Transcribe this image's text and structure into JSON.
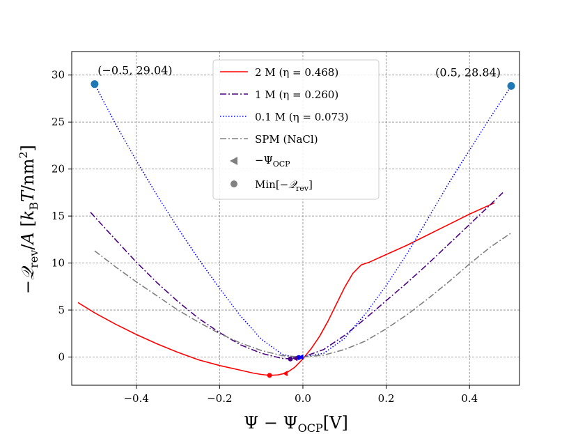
{
  "chart_data": {
    "type": "line",
    "xlabel": "Ψ − Ψ_OCP[V]",
    "ylabel": "−Q_rev/A [k_B T/nm²]",
    "xlim": [
      -0.555,
      0.52
    ],
    "ylim": [
      -3.0,
      32.5
    ],
    "xticks": [
      -0.4,
      -0.2,
      0.0,
      0.2,
      0.4
    ],
    "xtick_labels": [
      "−0.4",
      "−0.2",
      "0.0",
      "0.2",
      "0.4"
    ],
    "yticks": [
      0,
      5,
      10,
      15,
      20,
      25,
      30
    ],
    "ytick_labels": [
      "0",
      "5",
      "10",
      "15",
      "20",
      "25",
      "30"
    ],
    "grid": true,
    "legend_position": "top-center",
    "series": [
      {
        "name": "2 M (η = 0.468)",
        "color": "#ff0000",
        "style": "solid",
        "x": [
          -0.54,
          -0.5,
          -0.45,
          -0.4,
          -0.35,
          -0.3,
          -0.25,
          -0.2,
          -0.15,
          -0.12,
          -0.1,
          -0.08,
          -0.06,
          -0.04,
          -0.02,
          0.0,
          0.02,
          0.04,
          0.06,
          0.08,
          0.1,
          0.12,
          0.14,
          0.16,
          0.2,
          0.25,
          0.3,
          0.35,
          0.4,
          0.46
        ],
        "y": [
          5.8,
          4.7,
          3.5,
          2.4,
          1.4,
          0.5,
          -0.3,
          -0.9,
          -1.4,
          -1.7,
          -1.85,
          -1.95,
          -1.9,
          -1.7,
          -1.1,
          -0.2,
          0.9,
          2.2,
          3.8,
          5.6,
          7.4,
          8.9,
          9.8,
          10.1,
          10.9,
          11.9,
          13.0,
          14.1,
          15.2,
          16.4
        ]
      },
      {
        "name": "1 M (η = 0.260)",
        "color": "#4b0082",
        "style": "dashdot",
        "x": [
          -0.51,
          -0.45,
          -0.4,
          -0.35,
          -0.3,
          -0.25,
          -0.2,
          -0.15,
          -0.1,
          -0.05,
          -0.02,
          0.0,
          0.05,
          0.1,
          0.15,
          0.2,
          0.25,
          0.3,
          0.35,
          0.4,
          0.45,
          0.48
        ],
        "y": [
          15.4,
          12.5,
          10.1,
          7.9,
          5.9,
          4.1,
          2.6,
          1.3,
          0.4,
          -0.15,
          -0.2,
          0.0,
          0.8,
          2.3,
          4.1,
          6.0,
          7.9,
          9.9,
          12.0,
          14.1,
          16.2,
          17.5
        ]
      },
      {
        "name": "0.1 M (η = 0.073)",
        "color": "#0000ff",
        "style": "dotted",
        "x": [
          -0.5,
          -0.45,
          -0.4,
          -0.35,
          -0.3,
          -0.25,
          -0.2,
          -0.15,
          -0.1,
          -0.05,
          -0.02,
          0.0,
          0.05,
          0.1,
          0.15,
          0.2,
          0.25,
          0.3,
          0.35,
          0.4,
          0.45,
          0.5
        ],
        "y": [
          29.04,
          24.8,
          20.9,
          17.2,
          13.7,
          10.4,
          7.3,
          4.4,
          1.9,
          0.3,
          -0.05,
          0.0,
          0.4,
          2.0,
          4.6,
          7.6,
          11.0,
          14.7,
          18.5,
          22.0,
          25.5,
          28.84
        ]
      },
      {
        "name": "SPM (NaCl)",
        "color": "#808080",
        "style": "dashdot",
        "x": [
          -0.5,
          -0.45,
          -0.4,
          -0.35,
          -0.3,
          -0.25,
          -0.2,
          -0.15,
          -0.1,
          -0.05,
          0.0,
          0.05,
          0.1,
          0.15,
          0.2,
          0.25,
          0.3,
          0.35,
          0.4,
          0.45,
          0.5
        ],
        "y": [
          11.3,
          9.6,
          8.0,
          6.5,
          5.0,
          3.7,
          2.5,
          1.5,
          0.7,
          0.15,
          0.0,
          0.2,
          0.8,
          1.7,
          3.0,
          4.5,
          6.2,
          8.0,
          9.9,
          11.7,
          13.2
        ]
      }
    ],
    "ocp_markers": {
      "name": "−Ψ_OCP",
      "color": "#808080",
      "points": [
        {
          "x": -0.042,
          "y": -1.75,
          "color": "#ff0000"
        },
        {
          "x": -0.018,
          "y": -0.15,
          "color": "#4b0082"
        },
        {
          "x": -0.004,
          "y": 0.0,
          "color": "#0000ff"
        }
      ]
    },
    "min_markers": {
      "name": "Min[−Q_rev]",
      "color": "#808080",
      "points": [
        {
          "x": -0.08,
          "y": -1.95,
          "color": "#ff0000"
        },
        {
          "x": -0.03,
          "y": -0.2,
          "color": "#4b0082"
        },
        {
          "x": -0.01,
          "y": -0.05,
          "color": "#0000ff"
        }
      ]
    },
    "endpoints": [
      {
        "x": -0.5,
        "y": 29.04,
        "label": "(−0.5, 29.04)"
      },
      {
        "x": 0.5,
        "y": 28.84,
        "label": "(0.5, 28.84)"
      }
    ],
    "endpoint_color": "#1f77b4"
  }
}
